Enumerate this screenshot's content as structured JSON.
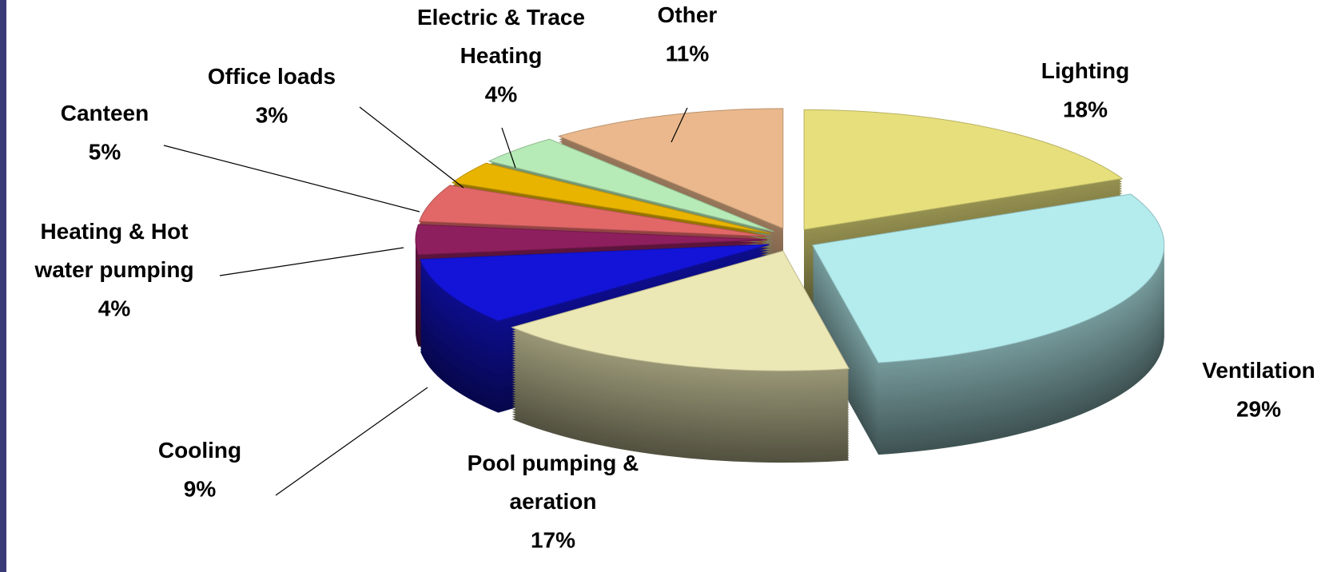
{
  "chart_data": {
    "type": "pie",
    "categories": [
      "Lighting",
      "Ventilation",
      "Pool pumping & aeration",
      "Cooling",
      "Heating & Hot water pumping",
      "Canteen",
      "Office loads",
      "Electric & Trace Heating",
      "Other"
    ],
    "values": [
      18,
      29,
      17,
      9,
      4,
      5,
      3,
      4,
      11
    ],
    "value_labels": [
      "18%",
      "29%",
      "17%",
      "9%",
      "4%",
      "5%",
      "3%",
      "4%",
      "11%"
    ],
    "colors": [
      "#e6df7c",
      "#b4ecee",
      "#ece8b6",
      "#1414d8",
      "#8e1f5e",
      "#e26868",
      "#e8b400",
      "#b6eab6",
      "#eab88c"
    ]
  }
}
